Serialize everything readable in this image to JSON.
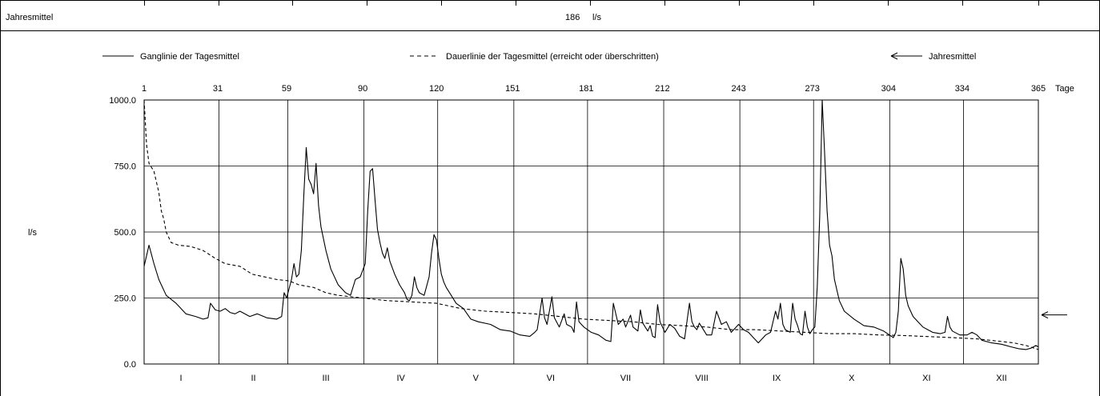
{
  "table": {
    "row_label": "Jahresmittel",
    "mean_value": "186",
    "mean_unit": "l/s"
  },
  "legend": {
    "items": [
      {
        "label": "Ganglinie der Tagesmittel",
        "style": "solid"
      },
      {
        "label": "Dauerlinie der Tagesmittel (erreicht oder überschritten)",
        "style": "dashed"
      },
      {
        "label": "Jahresmittel",
        "style": "arrow"
      }
    ]
  },
  "chart_data": {
    "type": "line",
    "ylabel": "l/s",
    "x_unit_label": "Tage",
    "xlim": [
      1,
      365
    ],
    "ylim": [
      0,
      1000
    ],
    "y_ticks": [
      "0.0",
      "250.0",
      "500.0",
      "750.0",
      "1000.0"
    ],
    "y_tick_values": [
      0,
      250,
      500,
      750,
      1000
    ],
    "x_ticks": [
      1,
      31,
      59,
      90,
      120,
      151,
      181,
      212,
      243,
      273,
      304,
      334,
      365
    ],
    "months": [
      "I",
      "II",
      "III",
      "IV",
      "V",
      "VI",
      "VII",
      "VIII",
      "IX",
      "X",
      "XI",
      "XII"
    ],
    "month_starts": [
      1,
      32,
      60,
      91,
      121,
      152,
      182,
      213,
      244,
      274,
      305,
      335
    ],
    "annual_mean": 186,
    "grid": true,
    "legend_position": "top",
    "series": [
      {
        "name": "Ganglinie der Tagesmittel",
        "style": "solid",
        "points": [
          [
            1,
            370
          ],
          [
            3,
            450
          ],
          [
            5,
            380
          ],
          [
            7,
            320
          ],
          [
            10,
            260
          ],
          [
            14,
            230
          ],
          [
            18,
            190
          ],
          [
            22,
            180
          ],
          [
            25,
            170
          ],
          [
            27,
            175
          ],
          [
            28,
            230
          ],
          [
            30,
            205
          ],
          [
            32,
            200
          ],
          [
            34,
            210
          ],
          [
            36,
            195
          ],
          [
            38,
            190
          ],
          [
            40,
            200
          ],
          [
            44,
            180
          ],
          [
            47,
            190
          ],
          [
            51,
            175
          ],
          [
            55,
            170
          ],
          [
            57,
            180
          ],
          [
            58,
            270
          ],
          [
            59,
            250
          ],
          [
            61,
            320
          ],
          [
            62,
            380
          ],
          [
            63,
            330
          ],
          [
            64,
            340
          ],
          [
            65,
            430
          ],
          [
            66,
            640
          ],
          [
            67,
            820
          ],
          [
            68,
            700
          ],
          [
            69,
            680
          ],
          [
            70,
            645
          ],
          [
            71,
            760
          ],
          [
            72,
            600
          ],
          [
            73,
            520
          ],
          [
            75,
            430
          ],
          [
            77,
            360
          ],
          [
            80,
            300
          ],
          [
            83,
            270
          ],
          [
            85,
            260
          ],
          [
            87,
            320
          ],
          [
            89,
            330
          ],
          [
            91,
            380
          ],
          [
            92,
            580
          ],
          [
            93,
            730
          ],
          [
            94,
            740
          ],
          [
            95,
            620
          ],
          [
            96,
            510
          ],
          [
            97,
            460
          ],
          [
            98,
            420
          ],
          [
            99,
            400
          ],
          [
            100,
            440
          ],
          [
            101,
            390
          ],
          [
            103,
            340
          ],
          [
            105,
            300
          ],
          [
            107,
            270
          ],
          [
            108,
            245
          ],
          [
            109,
            240
          ],
          [
            110,
            260
          ],
          [
            111,
            330
          ],
          [
            112,
            290
          ],
          [
            113,
            270
          ],
          [
            115,
            260
          ],
          [
            117,
            330
          ],
          [
            118,
            420
          ],
          [
            119,
            490
          ],
          [
            120,
            470
          ],
          [
            121,
            400
          ],
          [
            122,
            340
          ],
          [
            123,
            310
          ],
          [
            124,
            290
          ],
          [
            126,
            260
          ],
          [
            128,
            230
          ],
          [
            131,
            210
          ],
          [
            134,
            170
          ],
          [
            137,
            160
          ],
          [
            142,
            150
          ],
          [
            146,
            130
          ],
          [
            150,
            125
          ],
          [
            154,
            110
          ],
          [
            158,
            105
          ],
          [
            160,
            120
          ],
          [
            161,
            130
          ],
          [
            163,
            250
          ],
          [
            164,
            175
          ],
          [
            165,
            150
          ],
          [
            167,
            255
          ],
          [
            168,
            175
          ],
          [
            170,
            140
          ],
          [
            172,
            190
          ],
          [
            173,
            150
          ],
          [
            175,
            140
          ],
          [
            176,
            120
          ],
          [
            177,
            235
          ],
          [
            178,
            160
          ],
          [
            180,
            140
          ],
          [
            183,
            120
          ],
          [
            186,
            110
          ],
          [
            189,
            90
          ],
          [
            191,
            85
          ],
          [
            192,
            230
          ],
          [
            194,
            150
          ],
          [
            196,
            170
          ],
          [
            197,
            140
          ],
          [
            199,
            185
          ],
          [
            200,
            140
          ],
          [
            202,
            125
          ],
          [
            203,
            205
          ],
          [
            204,
            155
          ],
          [
            206,
            125
          ],
          [
            207,
            145
          ],
          [
            208,
            105
          ],
          [
            209,
            100
          ],
          [
            210,
            225
          ],
          [
            211,
            160
          ],
          [
            212,
            140
          ],
          [
            213,
            120
          ],
          [
            215,
            150
          ],
          [
            217,
            135
          ],
          [
            219,
            105
          ],
          [
            221,
            95
          ],
          [
            223,
            230
          ],
          [
            224,
            160
          ],
          [
            225,
            140
          ],
          [
            226,
            130
          ],
          [
            227,
            155
          ],
          [
            228,
            140
          ],
          [
            230,
            110
          ],
          [
            232,
            110
          ],
          [
            234,
            200
          ],
          [
            236,
            150
          ],
          [
            238,
            160
          ],
          [
            240,
            120
          ],
          [
            242,
            140
          ],
          [
            243,
            150
          ],
          [
            245,
            130
          ],
          [
            247,
            120
          ],
          [
            249,
            100
          ],
          [
            251,
            80
          ],
          [
            254,
            110
          ],
          [
            256,
            120
          ],
          [
            258,
            200
          ],
          [
            259,
            170
          ],
          [
            260,
            230
          ],
          [
            261,
            150
          ],
          [
            262,
            130
          ],
          [
            264,
            120
          ],
          [
            265,
            230
          ],
          [
            266,
            170
          ],
          [
            267,
            145
          ],
          [
            268,
            115
          ],
          [
            269,
            110
          ],
          [
            270,
            200
          ],
          [
            271,
            140
          ],
          [
            272,
            115
          ],
          [
            273,
            130
          ],
          [
            274,
            140
          ],
          [
            275,
            290
          ],
          [
            276,
            560
          ],
          [
            277,
            1000
          ],
          [
            278,
            800
          ],
          [
            279,
            580
          ],
          [
            280,
            450
          ],
          [
            281,
            410
          ],
          [
            282,
            320
          ],
          [
            284,
            240
          ],
          [
            286,
            200
          ],
          [
            290,
            170
          ],
          [
            294,
            145
          ],
          [
            298,
            140
          ],
          [
            302,
            125
          ],
          [
            306,
            100
          ],
          [
            307,
            120
          ],
          [
            308,
            200
          ],
          [
            309,
            400
          ],
          [
            310,
            360
          ],
          [
            311,
            260
          ],
          [
            312,
            220
          ],
          [
            314,
            180
          ],
          [
            316,
            160
          ],
          [
            318,
            140
          ],
          [
            320,
            130
          ],
          [
            322,
            120
          ],
          [
            325,
            115
          ],
          [
            327,
            120
          ],
          [
            328,
            180
          ],
          [
            329,
            140
          ],
          [
            330,
            125
          ],
          [
            333,
            110
          ],
          [
            336,
            110
          ],
          [
            338,
            120
          ],
          [
            340,
            110
          ],
          [
            342,
            90
          ],
          [
            346,
            80
          ],
          [
            350,
            75
          ],
          [
            354,
            65
          ],
          [
            357,
            58
          ],
          [
            360,
            55
          ],
          [
            362,
            60
          ],
          [
            364,
            70
          ],
          [
            365,
            65
          ]
        ]
      },
      {
        "name": "Dauerlinie der Tagesmittel (erreicht oder überschritten)",
        "style": "dashed",
        "points": [
          [
            1,
            1000
          ],
          [
            2,
            830
          ],
          [
            3,
            760
          ],
          [
            5,
            730
          ],
          [
            7,
            650
          ],
          [
            8,
            580
          ],
          [
            9,
            550
          ],
          [
            10,
            500
          ],
          [
            12,
            460
          ],
          [
            15,
            450
          ],
          [
            20,
            445
          ],
          [
            25,
            430
          ],
          [
            30,
            400
          ],
          [
            34,
            380
          ],
          [
            40,
            370
          ],
          [
            45,
            340
          ],
          [
            50,
            330
          ],
          [
            55,
            320
          ],
          [
            60,
            315
          ],
          [
            64,
            300
          ],
          [
            70,
            290
          ],
          [
            75,
            270
          ],
          [
            80,
            260
          ],
          [
            90,
            250
          ],
          [
            100,
            240
          ],
          [
            110,
            235
          ],
          [
            120,
            230
          ],
          [
            130,
            210
          ],
          [
            140,
            200
          ],
          [
            150,
            195
          ],
          [
            160,
            190
          ],
          [
            170,
            180
          ],
          [
            180,
            170
          ],
          [
            190,
            165
          ],
          [
            200,
            160
          ],
          [
            210,
            150
          ],
          [
            220,
            145
          ],
          [
            230,
            140
          ],
          [
            240,
            130
          ],
          [
            250,
            130
          ],
          [
            260,
            125
          ],
          [
            270,
            120
          ],
          [
            280,
            115
          ],
          [
            290,
            115
          ],
          [
            300,
            110
          ],
          [
            310,
            108
          ],
          [
            320,
            104
          ],
          [
            330,
            100
          ],
          [
            340,
            95
          ],
          [
            350,
            85
          ],
          [
            355,
            80
          ],
          [
            360,
            70
          ],
          [
            365,
            55
          ]
        ]
      }
    ]
  }
}
